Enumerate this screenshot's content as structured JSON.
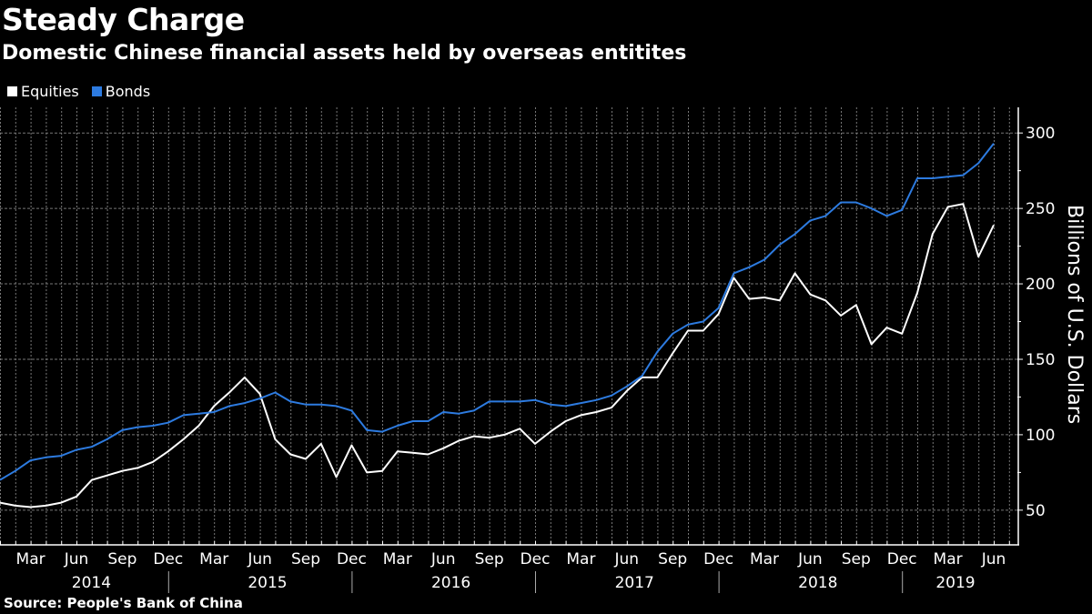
{
  "chart_data": {
    "type": "line",
    "title": "Steady Charge",
    "subtitle": "Domestic Chinese financial assets held by overseas entitites",
    "ylabel": "Billions of U.S. Dollars",
    "source": "Source: People's Bank of China",
    "ylim": [
      27,
      317
    ],
    "yticks": [
      50,
      100,
      150,
      200,
      250,
      300
    ],
    "y_axis_side": "right",
    "grid": true,
    "legend_position": "top-left",
    "x": [
      "2014-01",
      "2014-02",
      "2014-03",
      "2014-04",
      "2014-05",
      "2014-06",
      "2014-07",
      "2014-08",
      "2014-09",
      "2014-10",
      "2014-11",
      "2014-12",
      "2015-01",
      "2015-02",
      "2015-03",
      "2015-04",
      "2015-05",
      "2015-06",
      "2015-07",
      "2015-08",
      "2015-09",
      "2015-10",
      "2015-11",
      "2015-12",
      "2016-01",
      "2016-02",
      "2016-03",
      "2016-04",
      "2016-05",
      "2016-06",
      "2016-07",
      "2016-08",
      "2016-09",
      "2016-10",
      "2016-11",
      "2016-12",
      "2017-01",
      "2017-02",
      "2017-03",
      "2017-04",
      "2017-05",
      "2017-06",
      "2017-07",
      "2017-08",
      "2017-09",
      "2017-10",
      "2017-11",
      "2017-12",
      "2018-01",
      "2018-02",
      "2018-03",
      "2018-04",
      "2018-05",
      "2018-06",
      "2018-07",
      "2018-08",
      "2018-09",
      "2018-10",
      "2018-11",
      "2018-12",
      "2019-01",
      "2019-02",
      "2019-03",
      "2019-04",
      "2019-05",
      "2019-06"
    ],
    "month_tick_labels": [
      {
        "month": "2014-03",
        "label": "Mar"
      },
      {
        "month": "2014-06",
        "label": "Jun"
      },
      {
        "month": "2014-09",
        "label": "Sep"
      },
      {
        "month": "2014-12",
        "label": "Dec"
      },
      {
        "month": "2015-03",
        "label": "Mar"
      },
      {
        "month": "2015-06",
        "label": "Jun"
      },
      {
        "month": "2015-09",
        "label": "Sep"
      },
      {
        "month": "2015-12",
        "label": "Dec"
      },
      {
        "month": "2016-03",
        "label": "Mar"
      },
      {
        "month": "2016-06",
        "label": "Jun"
      },
      {
        "month": "2016-09",
        "label": "Sep"
      },
      {
        "month": "2016-12",
        "label": "Dec"
      },
      {
        "month": "2017-03",
        "label": "Mar"
      },
      {
        "month": "2017-06",
        "label": "Jun"
      },
      {
        "month": "2017-09",
        "label": "Sep"
      },
      {
        "month": "2017-12",
        "label": "Dec"
      },
      {
        "month": "2018-03",
        "label": "Mar"
      },
      {
        "month": "2018-06",
        "label": "Jun"
      },
      {
        "month": "2018-09",
        "label": "Sep"
      },
      {
        "month": "2018-12",
        "label": "Dec"
      },
      {
        "month": "2019-03",
        "label": "Mar"
      },
      {
        "month": "2019-06",
        "label": "Jun"
      }
    ],
    "year_labels": [
      "2014",
      "2015",
      "2016",
      "2017",
      "2018",
      "2019"
    ],
    "series": [
      {
        "name": "Equities",
        "color": "#ffffff",
        "values": [
          55,
          53,
          52,
          53,
          55,
          59,
          70,
          73,
          76,
          78,
          82,
          89,
          97,
          106,
          119,
          128,
          138,
          127,
          97,
          87,
          84,
          94,
          72,
          93,
          75,
          76,
          89,
          88,
          87,
          91,
          96,
          99,
          98,
          100,
          104,
          94,
          102,
          109,
          113,
          115,
          118,
          129,
          138,
          138,
          154,
          169,
          169,
          180,
          204,
          190,
          191,
          189,
          207,
          193,
          189,
          179,
          186,
          160,
          171,
          167,
          194,
          233,
          251,
          253,
          218,
          239
        ]
      },
      {
        "name": "Bonds",
        "color": "#2d7be0",
        "values": [
          70,
          76,
          83,
          85,
          86,
          90,
          92,
          97,
          103,
          105,
          106,
          108,
          113,
          114,
          115,
          119,
          121,
          124,
          128,
          122,
          120,
          120,
          119,
          116,
          103,
          102,
          106,
          109,
          109,
          115,
          114,
          116,
          122,
          122,
          122,
          123,
          120,
          119,
          121,
          123,
          126,
          132,
          139,
          155,
          167,
          173,
          175,
          184,
          207,
          211,
          216,
          226,
          233,
          242,
          245,
          254,
          254,
          250,
          245,
          249,
          270,
          270,
          271,
          272,
          280,
          293
        ]
      }
    ]
  }
}
